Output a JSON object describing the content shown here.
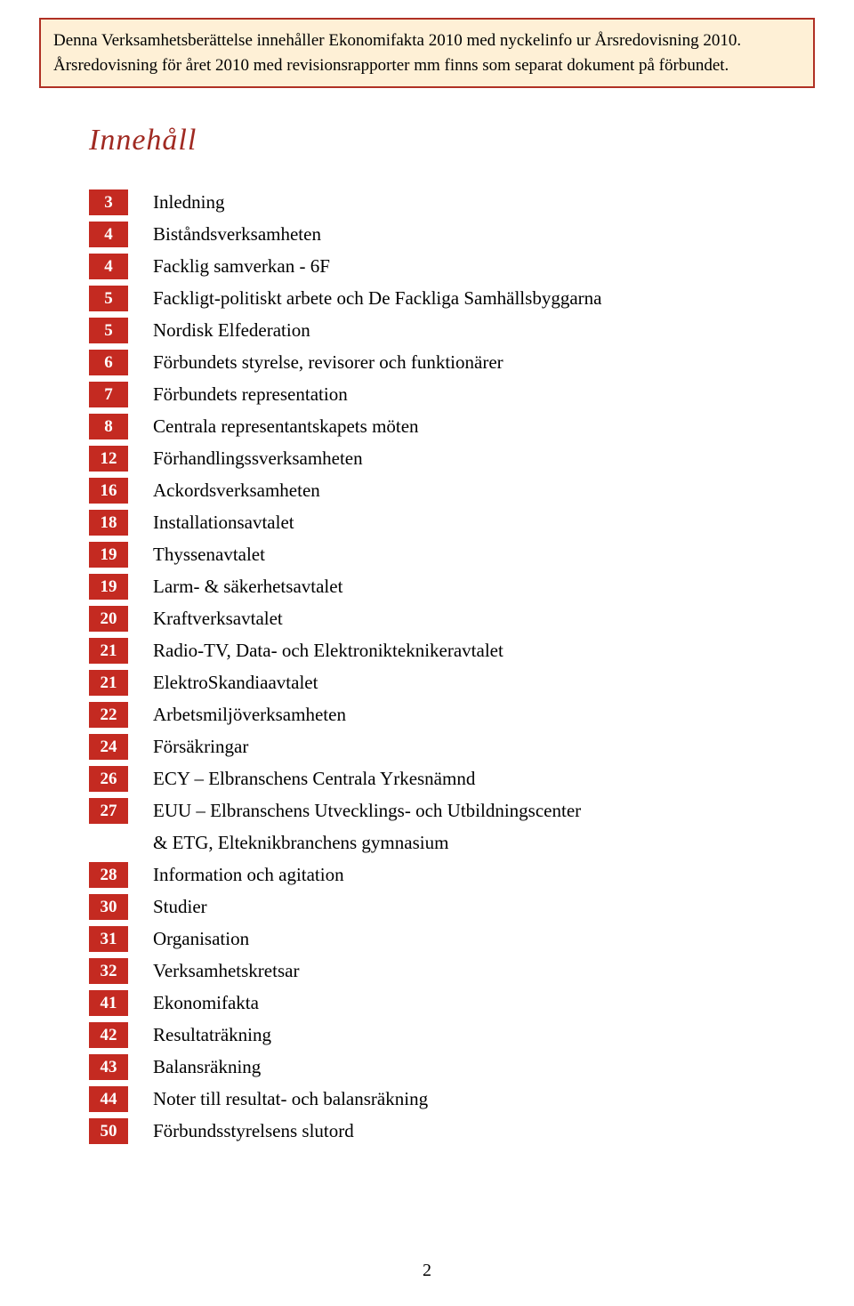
{
  "notice": {
    "line1": "Denna Verksamhetsberättelse innehåller Ekonomifakta 2010 med nyckelinfo ur Årsredovisning 2010.",
    "line2": "Årsredovisning för året 2010 med revisionsrapporter mm finns som separat dokument på förbundet.",
    "background_color": "#fef0d6",
    "border_color": "#b03024",
    "text_color": "#000000",
    "font_size_pt": 14
  },
  "heading": {
    "text": "Innehåll",
    "color": "#a02a22",
    "font_size_pt": 26,
    "font_style": "italic"
  },
  "toc": {
    "page_cell_bg": "#c42a21",
    "page_cell_color": "#ffffff",
    "label_color": "#000000",
    "font_size_pt": 16,
    "items": [
      {
        "page": "3",
        "label": "Inledning"
      },
      {
        "page": "4",
        "label": "Biståndsverksamheten"
      },
      {
        "page": "4",
        "label": "Facklig samverkan - 6F"
      },
      {
        "page": "5",
        "label": "Fackligt-politiskt arbete och De Fackliga Samhällsbyggarna"
      },
      {
        "page": "5",
        "label": "Nordisk Elfederation"
      },
      {
        "page": "6",
        "label": "Förbundets styrelse, revisorer och funktionärer"
      },
      {
        "page": "7",
        "label": "Förbundets representation"
      },
      {
        "page": "8",
        "label": "Centrala representantskapets möten"
      },
      {
        "page": "12",
        "label": "Förhandlingssverksamheten"
      },
      {
        "page": "16",
        "label": "Ackordsverksamheten"
      },
      {
        "page": "18",
        "label": "Installationsavtalet"
      },
      {
        "page": "19",
        "label": "Thyssenavtalet"
      },
      {
        "page": "19",
        "label": "Larm- & säkerhetsavtalet"
      },
      {
        "page": "20",
        "label": "Kraftverksavtalet"
      },
      {
        "page": "21",
        "label": "Radio-TV, Data- och Elektroniktekniker­avtalet"
      },
      {
        "page": "21",
        "label": "ElektroSkandiaavtalet"
      },
      {
        "page": "22",
        "label": "Arbetsmiljöverksamheten"
      },
      {
        "page": "24",
        "label": "Försäkringar"
      },
      {
        "page": "26",
        "label": "ECY – Elbranschens Centrala Yrkesnämnd"
      },
      {
        "page": "27",
        "label": "EUU – Elbranschens Utvecklings- och Utbildningscenter"
      },
      {
        "page": "",
        "label": "& ETG, Elteknikbranchens gymnasium",
        "indent": true
      },
      {
        "page": "28",
        "label": "Information och agitation"
      },
      {
        "page": "30",
        "label": "Studier"
      },
      {
        "page": "31",
        "label": "Organisation"
      },
      {
        "page": "32",
        "label": "Verksamhetskretsar"
      },
      {
        "page": "41",
        "label": "Ekonomifakta"
      },
      {
        "page": "42",
        "label": "Resultaträkning"
      },
      {
        "page": "43",
        "label": "Balansräkning"
      },
      {
        "page": "44",
        "label": "Noter till resultat- och balansräkning"
      },
      {
        "page": "50",
        "label": "Förbundsstyrelsens slutord"
      }
    ]
  },
  "footer": {
    "page_number": "2",
    "font_size_pt": 15,
    "color": "#000000"
  }
}
